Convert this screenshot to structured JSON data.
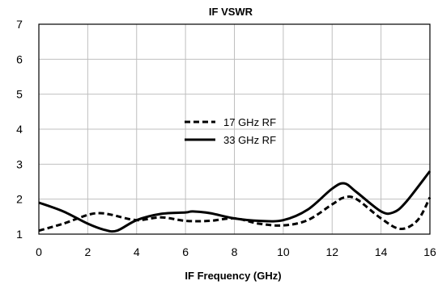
{
  "chart_data": {
    "type": "line",
    "title": "IF VSWR",
    "xlabel": "IF Frequency (GHz)",
    "ylabel": "",
    "xlim": [
      0,
      16
    ],
    "ylim": [
      1,
      7
    ],
    "xticks": [
      "0",
      "2",
      "4",
      "6",
      "8",
      "10",
      "12",
      "14",
      "16"
    ],
    "yticks": [
      "1",
      "2",
      "3",
      "4",
      "5",
      "6",
      "7"
    ],
    "grid": true,
    "legend_position": "center",
    "series": [
      {
        "name": "17 GHz RF",
        "style": "dashed",
        "color": "#000000",
        "x": [
          0,
          1,
          2,
          2.5,
          3,
          4,
          5,
          6,
          7,
          8,
          9,
          10,
          11,
          12,
          12.5,
          13,
          14,
          14.8,
          15.5,
          16
        ],
        "values": [
          1.1,
          1.3,
          1.55,
          1.6,
          1.55,
          1.4,
          1.48,
          1.38,
          1.38,
          1.45,
          1.3,
          1.25,
          1.4,
          1.85,
          2.05,
          2.0,
          1.45,
          1.15,
          1.4,
          2.05
        ]
      },
      {
        "name": "33 GHz RF",
        "style": "solid",
        "color": "#000000",
        "x": [
          0,
          1,
          2,
          2.7,
          3.2,
          4,
          5,
          6,
          6.3,
          7,
          8,
          9,
          10,
          11,
          12,
          12.5,
          13,
          14,
          14.5,
          15,
          16
        ],
        "values": [
          1.9,
          1.65,
          1.3,
          1.12,
          1.1,
          1.4,
          1.58,
          1.62,
          1.65,
          1.6,
          1.45,
          1.38,
          1.4,
          1.7,
          2.3,
          2.45,
          2.2,
          1.65,
          1.62,
          1.9,
          2.8
        ]
      }
    ]
  }
}
